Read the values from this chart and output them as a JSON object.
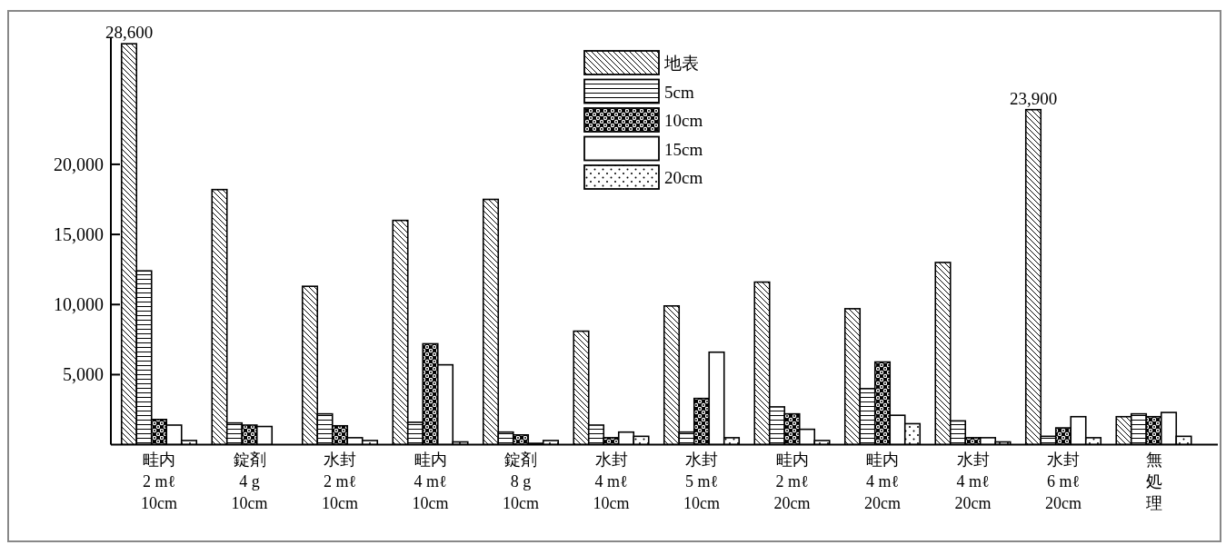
{
  "chart_data": {
    "type": "bar",
    "categories": [
      "畦内\n2 mℓ\n10cm",
      "錠剤\n4 g\n10cm",
      "水封\n2 mℓ\n10cm",
      "畦内\n4 mℓ\n10cm",
      "錠剤\n8 g\n10cm",
      "水封\n4 mℓ\n10cm",
      "水封\n5 mℓ\n10cm",
      "畦内\n2 mℓ\n20cm",
      "畦内\n4 mℓ\n20cm",
      "水封\n4 mℓ\n20cm",
      "水封\n6 mℓ\n20cm",
      "無処理"
    ],
    "series": [
      {
        "name": "地表",
        "color": "#000000",
        "values": [
          28600,
          18200,
          11300,
          16000,
          17500,
          8100,
          9900,
          11600,
          9700,
          13000,
          23900,
          2000
        ],
        "value_labels": [
          "28,600",
          null,
          null,
          null,
          null,
          null,
          null,
          null,
          null,
          null,
          "23,900",
          null
        ]
      },
      {
        "name": "5cm",
        "color": "#000000",
        "values": [
          12400,
          1550,
          2200,
          1600,
          900,
          1400,
          900,
          2700,
          4000,
          1700,
          600,
          2200
        ]
      },
      {
        "name": "10cm",
        "color": "#000000",
        "values": [
          1800,
          1400,
          1350,
          7200,
          700,
          500,
          3300,
          2200,
          5900,
          500,
          1200,
          2000
        ]
      },
      {
        "name": "15cm",
        "color": "#000000",
        "values": [
          1400,
          1300,
          500,
          5700,
          100,
          900,
          6600,
          1100,
          2100,
          500,
          2000,
          2300
        ]
      },
      {
        "name": "20cm",
        "color": "#000000",
        "values": [
          300,
          null,
          300,
          200,
          300,
          600,
          500,
          300,
          1500,
          200,
          500,
          600
        ]
      }
    ],
    "ylim": [
      0,
      29000
    ],
    "yticks": [
      {
        "value": 5000,
        "label": "5,000"
      },
      {
        "value": 10000,
        "label": "10,000"
      },
      {
        "value": 15000,
        "label": "15,000"
      },
      {
        "value": 20000,
        "label": "20,000"
      }
    ],
    "grid": false,
    "legend": "top"
  }
}
